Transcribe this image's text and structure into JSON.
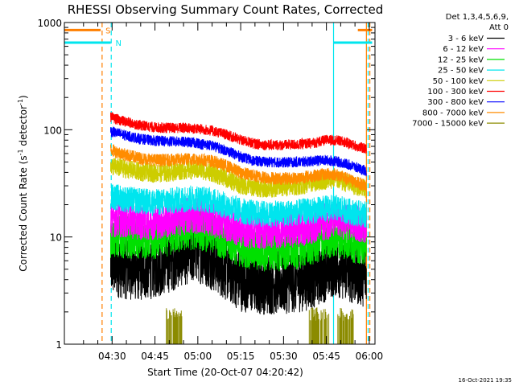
{
  "chart_data": {
    "type": "line",
    "title": "RHESSI Observing Summary Count Rates, Corrected",
    "xlabel": "Start Time (20-Oct-07 04:20:42)",
    "ylabel": "Corrected Count Rate (s⁻¹ detector⁻¹)",
    "ylabel_main": "Corrected Count Rate (s",
    "ylabel_sup1": "-1",
    "ylabel_mid": " detector",
    "ylabel_sup2": "-1",
    "ylabel_end": ")",
    "yscale": "log",
    "ylim": [
      1,
      1000
    ],
    "y_ticks": [
      {
        "value": 1,
        "label": "1"
      },
      {
        "value": 10,
        "label": "10"
      },
      {
        "value": 100,
        "label": "100"
      },
      {
        "value": 1000,
        "label": "1000"
      }
    ],
    "xlim_minutes": [
      -6.7,
      102.0
    ],
    "x_ticks": [
      {
        "minute": 10,
        "label": "04:30"
      },
      {
        "minute": 25,
        "label": "04:45"
      },
      {
        "minute": 40,
        "label": "05:00"
      },
      {
        "minute": 55,
        "label": "05:15"
      },
      {
        "minute": 70,
        "label": "05:30"
      },
      {
        "minute": 85,
        "label": "05:45"
      },
      {
        "minute": 100,
        "label": "06:00"
      }
    ],
    "legend_header": [
      "Det 1,3,4,5,6,9,",
      "Att 0"
    ],
    "timestamp": "16-Oct-2021 19:35",
    "markers": {
      "saa": {
        "label": "S",
        "color": "#ff7f00",
        "bars": [
          [
            -6.7,
            6.0
          ],
          [
            96.0,
            101.0
          ]
        ],
        "value": 850
      },
      "night": {
        "label": "N",
        "color": "#00e5ee",
        "bars": [
          [
            -6.7,
            9.5
          ],
          [
            87.5,
            101.0
          ]
        ],
        "value": 650
      }
    },
    "vlines": [
      {
        "minute": 6.5,
        "color": "#ff7f00",
        "style": "dashed"
      },
      {
        "minute": 9.7,
        "color": "#00e5ee",
        "style": "dashed"
      },
      {
        "minute": 87.5,
        "color": "#00e5ee",
        "style": "solid"
      },
      {
        "minute": 99.0,
        "color": "#ff7f00",
        "style": "solid"
      },
      {
        "minute": 99.6,
        "color": "#00e5ee",
        "style": "dashed"
      },
      {
        "minute": 100.2,
        "color": "#ff7f00",
        "style": "dashed"
      }
    ],
    "data_range_minutes": [
      9.5,
      99.0
    ],
    "series": [
      {
        "name": "3 - 6 keV",
        "color": "#000000",
        "x": [
          9.5,
          15,
          20,
          25,
          30,
          35,
          40,
          45,
          50,
          55,
          60,
          65,
          70,
          75,
          80,
          85,
          88,
          92,
          95,
          99
        ],
        "y": [
          5.5,
          5.2,
          5.0,
          5.3,
          6.0,
          7.0,
          7.5,
          6.3,
          5.0,
          4.0,
          3.8,
          3.7,
          3.8,
          3.9,
          4.2,
          5.0,
          5.5,
          5.0,
          4.6,
          4.4
        ],
        "noise": 0.6
      },
      {
        "name": "6 - 12 keV",
        "color": "#ff00ff",
        "x": [
          9.5,
          15,
          20,
          25,
          30,
          35,
          40,
          45,
          50,
          55,
          60,
          65,
          70,
          75,
          80,
          85,
          88,
          92,
          95,
          99
        ],
        "y": [
          15,
          14.5,
          14,
          14,
          14.5,
          15.5,
          16,
          15,
          13.5,
          12,
          11.5,
          11.5,
          11.8,
          12,
          12.8,
          14,
          14.5,
          14,
          13.5,
          13
        ],
        "noise": 0.35
      },
      {
        "name": "12 - 25 keV",
        "color": "#00e000",
        "x": [
          9.5,
          15,
          20,
          25,
          30,
          35,
          40,
          45,
          50,
          55,
          60,
          65,
          70,
          75,
          80,
          85,
          88,
          92,
          95,
          99
        ],
        "y": [
          10,
          10,
          9.8,
          9.8,
          10.5,
          11.5,
          12,
          11,
          9.5,
          8.2,
          7.6,
          7.5,
          7.6,
          7.9,
          8.5,
          9.7,
          10.2,
          9.6,
          9.0,
          8.5
        ],
        "noise": 0.4
      },
      {
        "name": "25 - 50 keV",
        "color": "#00e5ee",
        "x": [
          9.5,
          15,
          20,
          25,
          30,
          35,
          40,
          45,
          50,
          55,
          60,
          65,
          70,
          75,
          80,
          85,
          88,
          92,
          95,
          99
        ],
        "y": [
          24,
          22.5,
          21.5,
          21,
          21.5,
          22.5,
          23,
          21.8,
          19.5,
          17.5,
          16.5,
          16.3,
          16.5,
          17,
          17.5,
          18.5,
          18.8,
          17.5,
          16.8,
          16
        ],
        "noise": 0.25
      },
      {
        "name": "50 - 100 keV",
        "color": "#cdcd00",
        "x": [
          9.5,
          15,
          20,
          25,
          30,
          35,
          40,
          45,
          50,
          55,
          60,
          65,
          70,
          75,
          80,
          85,
          88,
          92,
          95,
          99
        ],
        "y": [
          46,
          43,
          40.5,
          39.5,
          40,
          42,
          42.5,
          40,
          35,
          30.5,
          29,
          28.5,
          29,
          30,
          32,
          34,
          35,
          32,
          30,
          28
        ],
        "noise": 0.18
      },
      {
        "name": "100 - 300 keV",
        "color": "#ff0000",
        "x": [
          9.5,
          15,
          20,
          25,
          30,
          35,
          40,
          45,
          50,
          55,
          60,
          65,
          70,
          75,
          80,
          85,
          88,
          92,
          95,
          99
        ],
        "y": [
          130,
          118,
          110,
          105,
          104,
          104,
          102,
          98,
          90,
          80,
          74,
          72,
          72,
          73,
          75,
          80,
          80,
          76,
          71,
          66
        ],
        "noise": 0.1
      },
      {
        "name": "300 - 800 keV",
        "color": "#0000ff",
        "x": [
          9.5,
          15,
          20,
          25,
          30,
          35,
          40,
          45,
          50,
          55,
          60,
          65,
          70,
          75,
          80,
          85,
          88,
          92,
          95,
          99
        ],
        "y": [
          97,
          88,
          82,
          79,
          78,
          77,
          75,
          71,
          64,
          56,
          51,
          50,
          49.5,
          50,
          51,
          52,
          51,
          48,
          45,
          41
        ],
        "noise": 0.1
      },
      {
        "name": "800 - 7000 keV",
        "color": "#ff8c00",
        "x": [
          9.5,
          15,
          20,
          25,
          30,
          35,
          40,
          45,
          50,
          55,
          60,
          65,
          70,
          75,
          80,
          85,
          88,
          92,
          95,
          99
        ],
        "y": [
          65,
          58,
          54,
          52,
          52,
          53,
          53,
          51,
          46,
          40,
          37,
          35.5,
          35,
          35.5,
          37,
          38.5,
          38.5,
          35,
          32.5,
          30
        ],
        "noise": 0.12
      },
      {
        "name": "7000 - 15000 keV",
        "color": "#8b8b00",
        "bursts": [
          [
            29.0,
            34.5
          ],
          [
            79.0,
            86.0
          ],
          [
            89.0,
            94.5
          ]
        ],
        "burst_top": 2.2,
        "baseline": 1
      }
    ]
  }
}
